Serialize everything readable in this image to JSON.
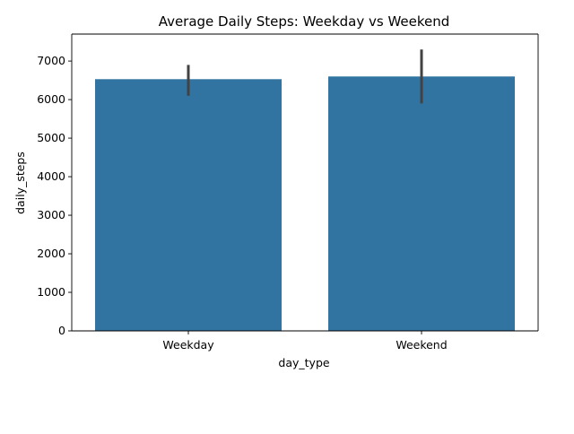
{
  "chart_data": {
    "type": "bar",
    "title": "Average Daily Steps: Weekday vs Weekend",
    "xlabel": "day_type",
    "ylabel": "daily_steps",
    "categories": [
      "Weekday",
      "Weekend"
    ],
    "values": [
      6530,
      6600
    ],
    "error_bars": [
      {
        "low": 6100,
        "high": 6900
      },
      {
        "low": 5900,
        "high": 7300
      }
    ],
    "ylim": [
      0,
      7700
    ],
    "yticks": [
      0,
      1000,
      2000,
      3000,
      4000,
      5000,
      6000,
      7000
    ],
    "grid": false,
    "legend": "none",
    "colors": {
      "bar": "#3274a1",
      "error_bar": "#424242",
      "axes": "#000000"
    }
  }
}
